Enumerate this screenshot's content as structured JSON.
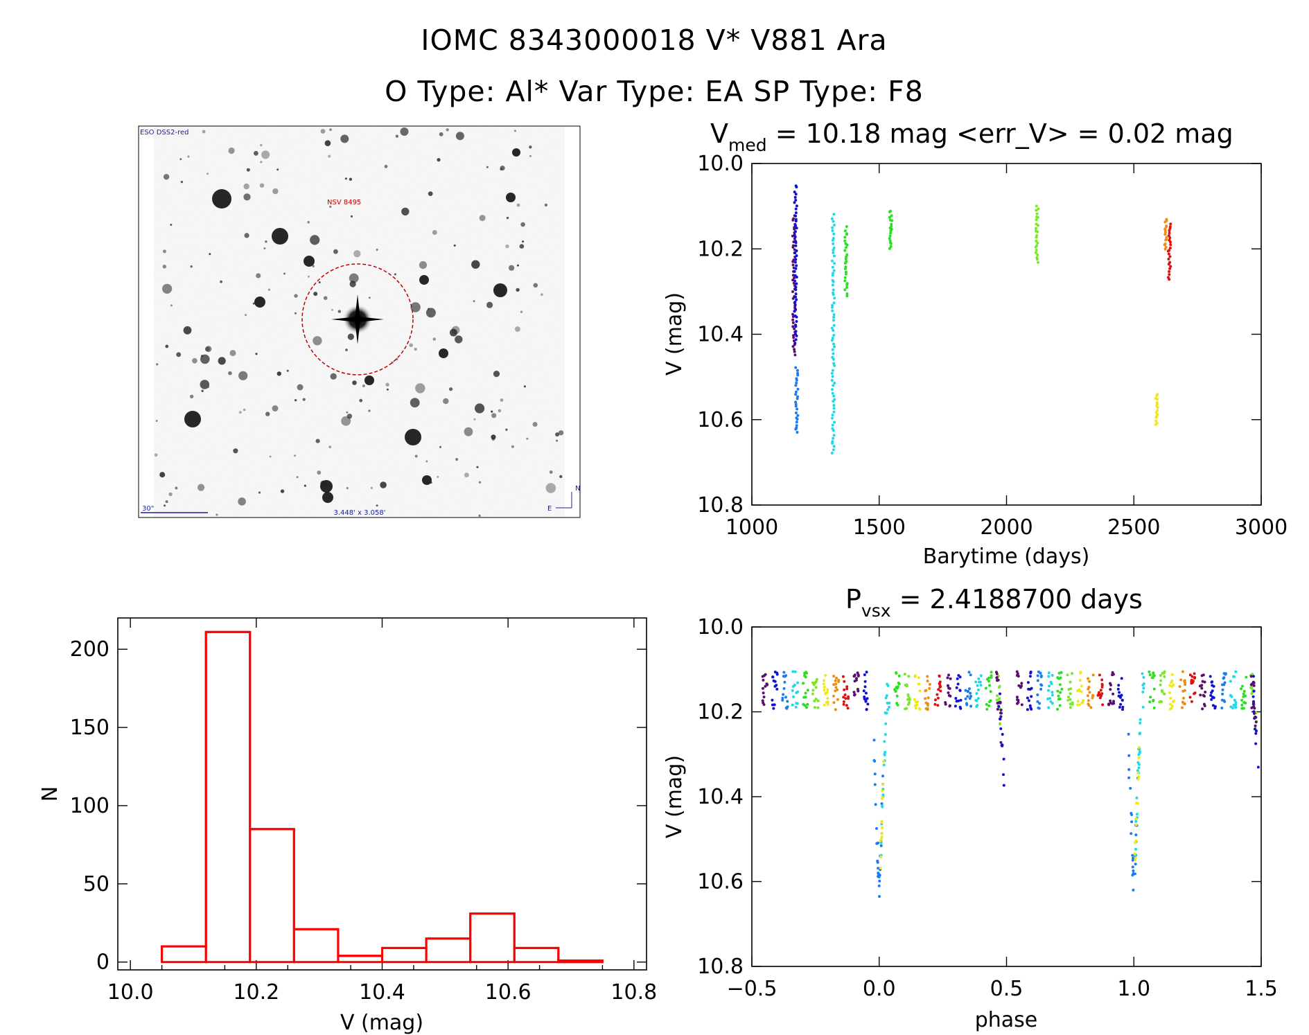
{
  "header": {
    "title": "IOMC 8343000018   V* V881 Ara",
    "subtitle": "O Type: Al*  Var Type: EA  SP Type: F8"
  },
  "finder": {
    "survey_label": "ESO DSS2-red",
    "target_label": "NSV 8495",
    "scale_label": "30\"",
    "fov_label": "3.448' x 3.058'",
    "north_label": "N",
    "east_label": "E"
  },
  "colors": {
    "histogram": "#ff0000",
    "circle": "#c00000",
    "finder_text_blue": "#1a1a9e",
    "finder_text_red": "#c00000",
    "seasons": [
      "#5a0f6e",
      "#1010d0",
      "#1a7cf0",
      "#20d8e8",
      "#28e020",
      "#78e828",
      "#f0e818",
      "#f08c10",
      "#e01010"
    ]
  },
  "chart_data": [
    {
      "id": "lightcurve",
      "type": "scatter",
      "title_main": "V",
      "title_sub": "med",
      "title_rest": " = 10.18 mag <err_V> = 0.02 mag",
      "xlabel": "Barytime (days)",
      "ylabel": "V (mag)",
      "xlim": [
        1000,
        3000
      ],
      "ylim": [
        10.8,
        10.0
      ],
      "xticks": [
        "1000",
        "1500",
        "2000",
        "2500",
        "3000"
      ],
      "yticks": [
        "10.0",
        "10.2",
        "10.4",
        "10.6",
        "10.8"
      ],
      "series": [
        {
          "color": "#5a0f6e",
          "x": 1165,
          "ymin": 10.12,
          "ymax": 10.45
        },
        {
          "color": "#1010d0",
          "x": 1172,
          "ymin": 10.05,
          "ymax": 10.42
        },
        {
          "color": "#1a7cf0",
          "x": 1176,
          "ymin": 10.48,
          "ymax": 10.63
        },
        {
          "color": "#20d8e8",
          "x": 1320,
          "ymin": 10.12,
          "ymax": 10.68
        },
        {
          "color": "#28e020",
          "x": 1370,
          "ymin": 10.15,
          "ymax": 10.31
        },
        {
          "color": "#28e020",
          "x": 1545,
          "ymin": 10.11,
          "ymax": 10.2
        },
        {
          "color": "#78e828",
          "x": 2120,
          "ymin": 10.1,
          "ymax": 10.23
        },
        {
          "color": "#f0e818",
          "x": 2590,
          "ymin": 10.54,
          "ymax": 10.61
        },
        {
          "color": "#f08c10",
          "x": 2625,
          "ymin": 10.13,
          "ymax": 10.2
        },
        {
          "color": "#e01010",
          "x": 2640,
          "ymin": 10.14,
          "ymax": 10.27
        }
      ]
    },
    {
      "id": "histogram",
      "type": "bar",
      "xlabel": "V (mag)",
      "ylabel": "N",
      "xlim": [
        9.98,
        10.82
      ],
      "ylim": [
        -5,
        220
      ],
      "xticks": [
        "10.0",
        "10.2",
        "10.4",
        "10.6",
        "10.8"
      ],
      "yticks": [
        "0",
        "50",
        "100",
        "150",
        "200"
      ],
      "bin_edges": [
        10.05,
        10.12,
        10.19,
        10.26,
        10.33,
        10.4,
        10.47,
        10.54,
        10.61,
        10.68,
        10.75
      ],
      "values": [
        10,
        211,
        85,
        21,
        4,
        9,
        15,
        31,
        9,
        1
      ]
    },
    {
      "id": "phased",
      "type": "scatter",
      "title_main": "P",
      "title_sub": "vsx",
      "title_rest": " = 2.4188700 days",
      "xlabel": "phase",
      "ylabel": "V (mag)",
      "xlim": [
        -0.5,
        1.5
      ],
      "ylim": [
        10.8,
        10.0
      ],
      "xticks": [
        "−0.5",
        "0.0",
        "0.5",
        "1.0",
        "1.5"
      ],
      "yticks": [
        "10.0",
        "10.2",
        "10.4",
        "10.6",
        "10.8"
      ],
      "period_days": 2.41887,
      "eclipse_primary": {
        "phase": 0.0,
        "depth_mag": 10.62
      },
      "eclipse_secondary": {
        "phase": 0.5,
        "depth_mag": 10.44
      },
      "out_of_eclipse_mag": 10.15
    }
  ]
}
